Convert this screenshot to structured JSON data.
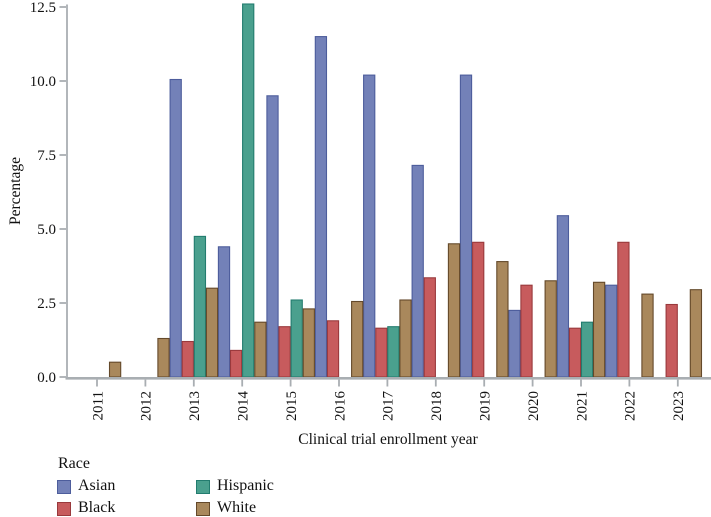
{
  "chart_data": {
    "type": "bar",
    "title": "",
    "xlabel": "Clinical trial enrollment year",
    "ylabel": "Percentage",
    "legend_title": "Race",
    "legend_position": "bottom-left",
    "grid": false,
    "ylim": [
      0,
      12.5
    ],
    "yticks": [
      "0.0",
      "2.5",
      "5.0",
      "7.5",
      "10.0",
      "12.5"
    ],
    "categories": [
      "2011",
      "2012",
      "2013",
      "2014",
      "2015",
      "2016",
      "2017",
      "2018",
      "2019",
      "2020",
      "2021",
      "2022",
      "2023"
    ],
    "series": [
      {
        "name": "Asian",
        "color": "#7381b8",
        "border": "#4d5d9c",
        "values": [
          0,
          0,
          10.05,
          4.4,
          9.5,
          11.5,
          10.2,
          7.15,
          10.2,
          2.25,
          5.45,
          3.1,
          0
        ]
      },
      {
        "name": "Black",
        "color": "#c75b5d",
        "border": "#99393c",
        "values": [
          0,
          0,
          1.2,
          0.9,
          1.7,
          1.9,
          1.65,
          3.35,
          4.55,
          3.1,
          1.65,
          4.55,
          2.45
        ]
      },
      {
        "name": "Hispanic",
        "color": "#4aa08e",
        "border": "#237c6f",
        "values": [
          0,
          0,
          4.75,
          12.6,
          2.6,
          0,
          1.7,
          0,
          0,
          0,
          1.85,
          0,
          0
        ]
      },
      {
        "name": "White",
        "color": "#a9885c",
        "border": "#64492a",
        "values": [
          0.5,
          1.3,
          3.0,
          1.85,
          2.3,
          2.55,
          2.6,
          4.5,
          3.9,
          3.25,
          3.2,
          2.8,
          2.95
        ]
      }
    ]
  },
  "colors": {
    "axis": "#a9aeb2",
    "text": "#111111",
    "background": "#ffffff"
  }
}
